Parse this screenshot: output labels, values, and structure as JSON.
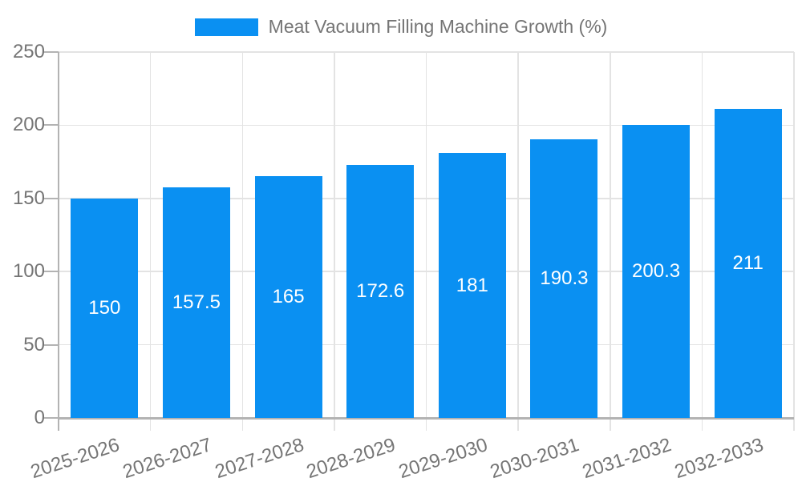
{
  "legend": {
    "label": "Meat Vacuum Filling Machine Growth (%)"
  },
  "chart_data": {
    "type": "bar",
    "title": "",
    "categories": [
      "2025-2026",
      "2026-2027",
      "2027-2028",
      "2028-2029",
      "2029-2030",
      "2030-2031",
      "2031-2032",
      "2032-2033"
    ],
    "series": [
      {
        "name": "Meat Vacuum Filling Machine Growth (%)",
        "values": [
          150,
          157.5,
          165,
          172.6,
          181,
          190.3,
          200.3,
          211
        ]
      }
    ],
    "value_labels": [
      "150",
      "157.5",
      "165",
      "172.6",
      "181",
      "190.3",
      "200.3",
      "211"
    ],
    "xlabel": "",
    "ylabel": "",
    "ylim": [
      0,
      250
    ],
    "yticks": [
      0,
      50,
      100,
      150,
      200,
      250
    ],
    "grid": true,
    "legend_position": "top",
    "colors": {
      "bar": "#0a90f2",
      "bar_label": "#ffffff",
      "axis_text": "#757575",
      "grid_line": "#e3e3e3",
      "axis_line": "#b3b3b3",
      "background": "#ffffff"
    }
  }
}
